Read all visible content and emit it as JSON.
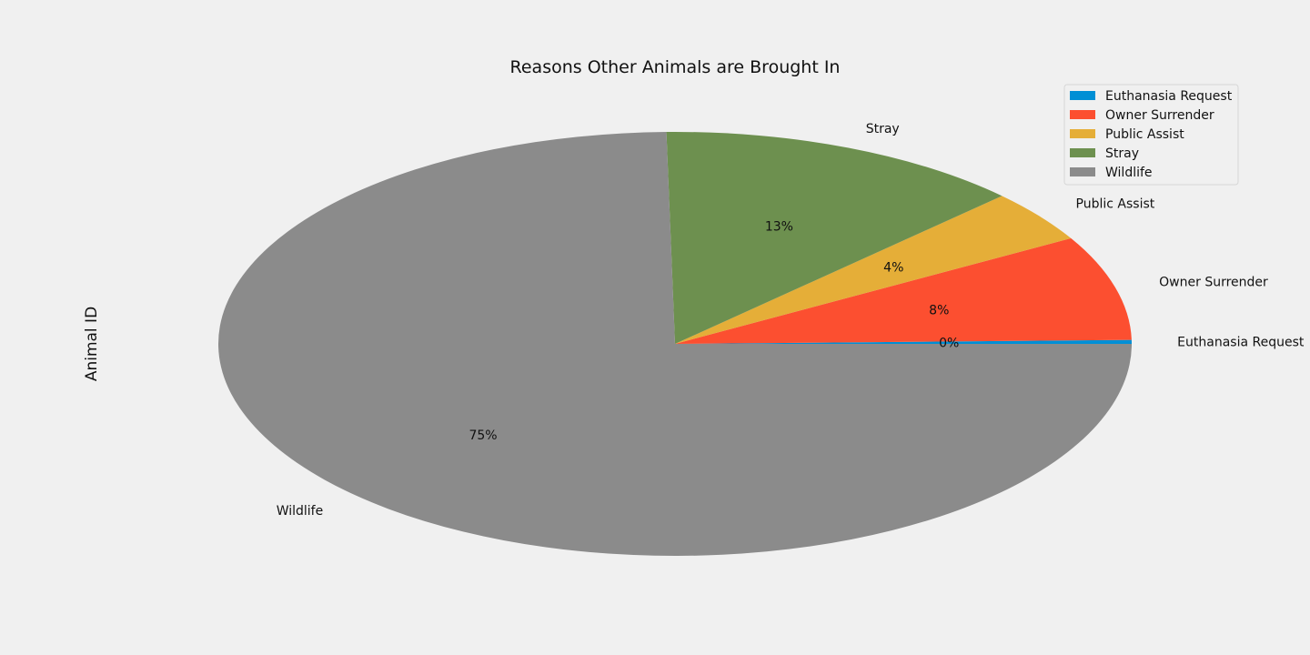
{
  "chart_data": {
    "type": "pie",
    "title": "Reasons Other Animals are Brought In",
    "ylabel": "Animal ID",
    "categories": [
      "Euthanasia Request",
      "Owner Surrender",
      "Public Assist",
      "Stray",
      "Wildlife"
    ],
    "values": [
      0.3,
      8.0,
      4.0,
      13.0,
      74.7
    ],
    "pct_labels": [
      "0%",
      "8%",
      "4%",
      "13%",
      "75%"
    ],
    "colors": [
      "#008fd5",
      "#fc4f30",
      "#e5ae38",
      "#6d904f",
      "#8b8b8b"
    ],
    "legend_position": "top-right",
    "start_angle": 0,
    "direction": "counterclockwise"
  }
}
